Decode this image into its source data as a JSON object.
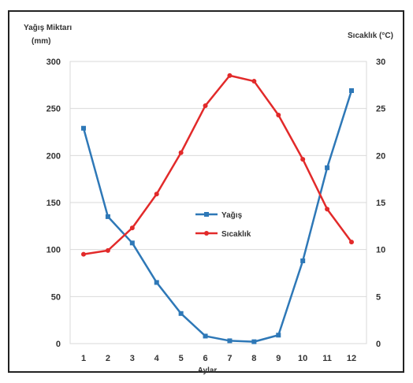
{
  "chart_data": {
    "type": "line",
    "xlabel": "Aylar",
    "ylabel_left": "Yağış Miktarı",
    "ylabel_left_unit": "(mm)",
    "ylabel_right": "Sıcaklık (°C)",
    "categories": [
      "1",
      "2",
      "3",
      "4",
      "5",
      "6",
      "7",
      "8",
      "9",
      "10",
      "11",
      "12"
    ],
    "ylim_left": [
      0,
      300
    ],
    "yticks_left": [
      0,
      50,
      100,
      150,
      200,
      250,
      300
    ],
    "ylim_right": [
      0,
      30
    ],
    "yticks_right": [
      0,
      5,
      10,
      15,
      20,
      25,
      30
    ],
    "grid": "horizontal",
    "legend": "center",
    "series": [
      {
        "name": "Yağış",
        "axis": "left",
        "color": "#2e78b7",
        "values": [
          229,
          135,
          107,
          65,
          32,
          8,
          3,
          2,
          9,
          88,
          187,
          269
        ]
      },
      {
        "name": "Sıcaklık",
        "axis": "right",
        "color": "#e22a2a",
        "values": [
          9.5,
          9.9,
          12.3,
          15.9,
          20.3,
          25.3,
          28.5,
          27.9,
          24.3,
          19.6,
          14.3,
          10.8
        ]
      }
    ]
  }
}
